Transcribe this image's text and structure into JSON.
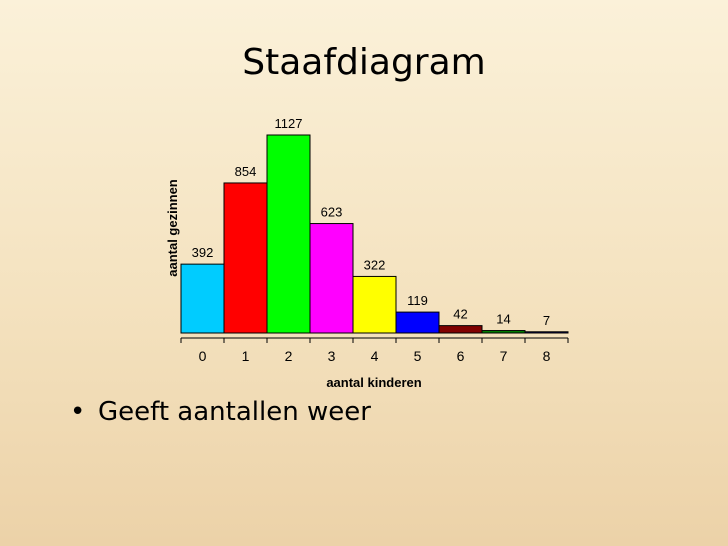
{
  "slide": {
    "title": "Staafdiagram",
    "bullets": [
      "Geeft aantallen weer"
    ]
  },
  "chart_data": {
    "type": "bar",
    "categories": [
      "0",
      "1",
      "2",
      "3",
      "4",
      "5",
      "6",
      "7",
      "8"
    ],
    "values": [
      392,
      854,
      1127,
      623,
      322,
      119,
      42,
      14,
      7
    ],
    "data_labels": [
      "392",
      "854",
      "1127",
      "623",
      "322",
      "119",
      "42",
      "14",
      "7"
    ],
    "colors": [
      "#00ccff",
      "#ff0000",
      "#00ff00",
      "#ff00ff",
      "#ffff00",
      "#0000ff",
      "#800000",
      "#008000",
      "#000080"
    ],
    "bar_width": "full (histogram, no gaps)",
    "xlabel": "aantal kinderen",
    "ylabel": "aantal gezinnen",
    "ylim": [
      0,
      1127
    ],
    "grid": false,
    "legend": "none"
  }
}
